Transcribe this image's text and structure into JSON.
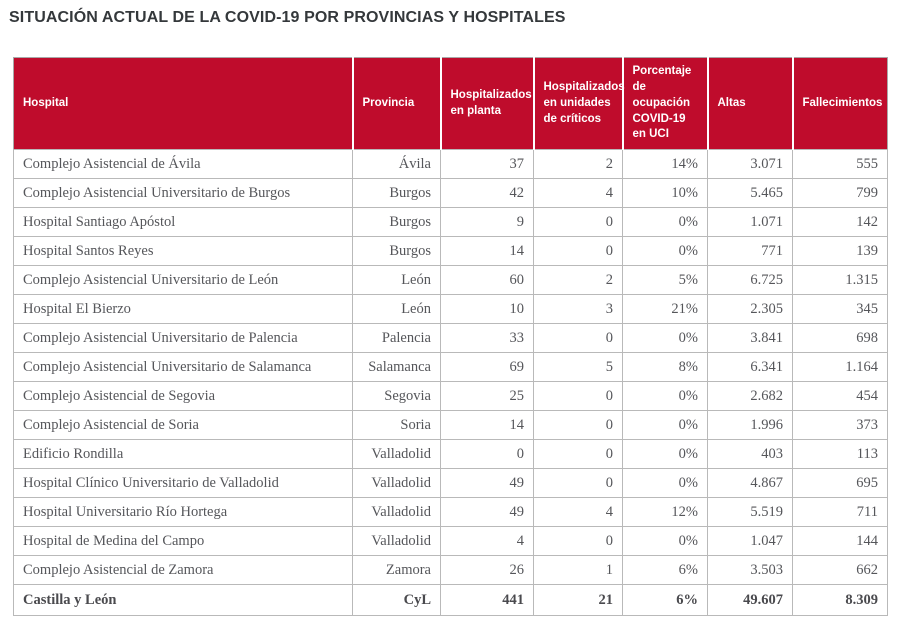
{
  "page": {
    "title": "SITUACIÓN ACTUAL DE LA COVID-19 POR PROVINCIAS Y HOSPITALES"
  },
  "colors": {
    "header_bg": "#bf0c2c",
    "header_text": "#ffffff",
    "body_text": "#55565a",
    "border": "#b9b9b9",
    "title_text": "#34383b"
  },
  "chart_data": {
    "type": "table",
    "title": "SITUACIÓN ACTUAL DE LA COVID-19 POR PROVINCIAS Y HOSPITALES",
    "columns": [
      "Hospital",
      "Provincia",
      "Hospitalizados en planta",
      "Hospitalizados en unidades de críticos",
      "Porcentaje de ocupación COVID-19 en UCI",
      "Altas",
      "Fallecimientos"
    ],
    "rows": [
      [
        "Complejo Asistencial de Ávila",
        "Ávila",
        "37",
        "2",
        "14%",
        "3.071",
        "555"
      ],
      [
        "Complejo Asistencial Universitario de Burgos",
        "Burgos",
        "42",
        "4",
        "10%",
        "5.465",
        "799"
      ],
      [
        "Hospital Santiago Apóstol",
        "Burgos",
        "9",
        "0",
        "0%",
        "1.071",
        "142"
      ],
      [
        "Hospital Santos Reyes",
        "Burgos",
        "14",
        "0",
        "0%",
        "771",
        "139"
      ],
      [
        "Complejo Asistencial Universitario de León",
        "León",
        "60",
        "2",
        "5%",
        "6.725",
        "1.315"
      ],
      [
        "Hospital El Bierzo",
        "León",
        "10",
        "3",
        "21%",
        "2.305",
        "345"
      ],
      [
        "Complejo Asistencial Universitario de Palencia",
        "Palencia",
        "33",
        "0",
        "0%",
        "3.841",
        "698"
      ],
      [
        "Complejo Asistencial Universitario de Salamanca",
        "Salamanca",
        "69",
        "5",
        "8%",
        "6.341",
        "1.164"
      ],
      [
        "Complejo Asistencial de Segovia",
        "Segovia",
        "25",
        "0",
        "0%",
        "2.682",
        "454"
      ],
      [
        "Complejo Asistencial de Soria",
        "Soria",
        "14",
        "0",
        "0%",
        "1.996",
        "373"
      ],
      [
        "Edificio Rondilla",
        "Valladolid",
        "0",
        "0",
        "0%",
        "403",
        "113"
      ],
      [
        "Hospital Clínico Universitario de Valladolid",
        "Valladolid",
        "49",
        "0",
        "0%",
        "4.867",
        "695"
      ],
      [
        "Hospital Universitario Río Hortega",
        "Valladolid",
        "49",
        "4",
        "12%",
        "5.519",
        "711"
      ],
      [
        "Hospital de Medina del Campo",
        "Valladolid",
        "4",
        "0",
        "0%",
        "1.047",
        "144"
      ],
      [
        "Complejo Asistencial de Zamora",
        "Zamora",
        "26",
        "1",
        "6%",
        "3.503",
        "662"
      ]
    ],
    "total_row": [
      "Castilla y León",
      "CyL",
      "441",
      "21",
      "6%",
      "49.607",
      "8.309"
    ]
  }
}
